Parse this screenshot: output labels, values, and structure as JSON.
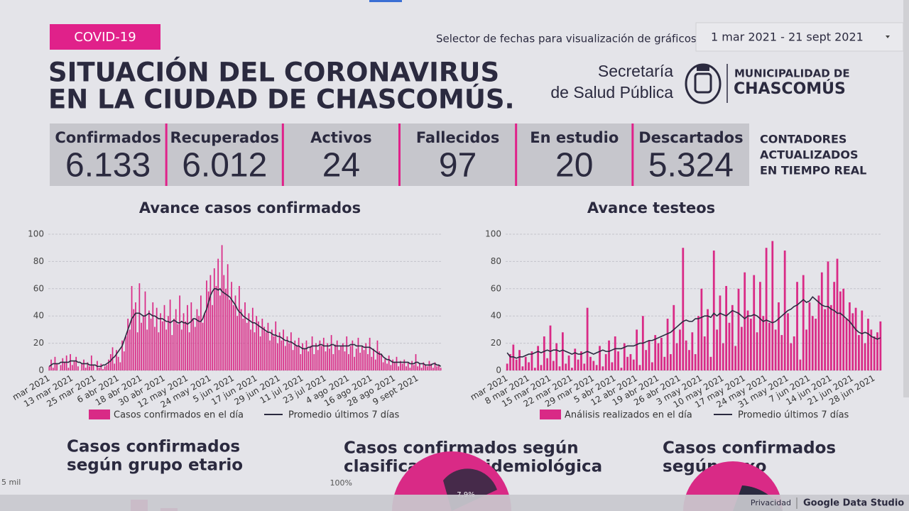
{
  "header": {
    "tag": "COVID-19",
    "title_lines": [
      "SITUACIÓN DEL CORONAVIRUS",
      "EN LA CIUDAD DE CHASCOMÚS."
    ],
    "date_selector_label": "Selector de fechas para visualización de gráficos:",
    "date_range": "1 mar 2021 - 21 sept 2021",
    "logo": {
      "secretaria": [
        "Secretaría",
        "de Salud Pública"
      ],
      "municipalidad": [
        "MUNICIPALIDAD DE",
        "CHASCOMÚS"
      ]
    }
  },
  "counters": [
    {
      "label": "Confirmados",
      "value": "6.133"
    },
    {
      "label": "Recuperados",
      "value": "6.012"
    },
    {
      "label": "Activos",
      "value": "24"
    },
    {
      "label": "Fallecidos",
      "value": "97"
    },
    {
      "label": "En estudio",
      "value": "20"
    },
    {
      "label": "Descartados",
      "value": "5.324"
    }
  ],
  "counters_note": [
    "CONTADORES",
    "ACTUALIZADOS",
    "EN TIEMPO REAL"
  ],
  "chart_data": [
    {
      "type": "bar",
      "title": "Avance casos confirmados",
      "categories": [
        "mar 2021",
        null,
        null,
        null,
        null,
        null,
        null,
        null,
        null,
        null,
        null,
        null,
        "13 mar 2021",
        null,
        null,
        null,
        null,
        null,
        null,
        null,
        null,
        null,
        null,
        null,
        "25 mar 2021",
        null,
        null,
        null,
        null,
        null,
        null,
        null,
        null,
        null,
        null,
        null,
        "6 abr 2021",
        null,
        null,
        null,
        null,
        null,
        null,
        null,
        null,
        null,
        null,
        null,
        "18 abr 2021",
        null,
        null,
        null,
        null,
        null,
        null,
        null,
        null,
        null,
        null,
        null,
        "30 abr 2021",
        null,
        null,
        null,
        null,
        null,
        null,
        null,
        null,
        null,
        null,
        null,
        "12 may 2021",
        null,
        null,
        null,
        null,
        null,
        null,
        null,
        null,
        null,
        null,
        null,
        "24 may 2021",
        null,
        null,
        null,
        null,
        null,
        null,
        null,
        null,
        null,
        null,
        null,
        "5 jun 2021",
        null,
        null,
        null,
        null,
        null,
        null,
        null,
        null,
        null,
        null,
        null,
        "17 jun 2021",
        null,
        null,
        null,
        null,
        null,
        null,
        null,
        null,
        null,
        null,
        null,
        "29 jun 2021",
        null,
        null,
        null,
        null,
        null,
        null,
        null,
        null,
        null,
        null,
        null,
        "11 jul 2021",
        null,
        null,
        null,
        null,
        null,
        null,
        null,
        null,
        null,
        null,
        null,
        "23 jul 2021",
        null,
        null,
        null,
        null,
        null,
        null,
        null,
        null,
        null,
        null,
        null,
        "4 ago 2021",
        null,
        null,
        null,
        null,
        null,
        null,
        null,
        null,
        null,
        null,
        null,
        "16 ago 2021",
        null,
        null,
        null,
        null,
        null,
        null,
        null,
        null,
        null,
        null,
        null,
        "28 ago 2021",
        null,
        null,
        null,
        null,
        null,
        null,
        null,
        null,
        null,
        null,
        null,
        "9 sept 2021",
        null,
        null,
        null,
        null,
        null,
        null,
        null,
        null,
        null,
        null,
        null,
        null
      ],
      "series": [
        {
          "name": "Casos confirmados en el día",
          "color": "#d92a86",
          "values": [
            3,
            8,
            2,
            10,
            5,
            0,
            4,
            9,
            6,
            11,
            2,
            12,
            4,
            7,
            10,
            3,
            0,
            5,
            8,
            2,
            6,
            3,
            11,
            4,
            0,
            7,
            2,
            5,
            1,
            3,
            4,
            8,
            12,
            17,
            5,
            15,
            10,
            6,
            22,
            14,
            25,
            38,
            30,
            62,
            45,
            50,
            28,
            64,
            35,
            40,
            58,
            30,
            44,
            38,
            50,
            32,
            46,
            28,
            42,
            36,
            48,
            30,
            40,
            52,
            26,
            38,
            45,
            34,
            55,
            30,
            42,
            36,
            48,
            28,
            50,
            38,
            32,
            45,
            40,
            55,
            35,
            42,
            66,
            58,
            70,
            48,
            75,
            62,
            82,
            55,
            92,
            70,
            60,
            78,
            52,
            65,
            48,
            55,
            40,
            62,
            45,
            38,
            50,
            35,
            42,
            30,
            46,
            28,
            40,
            36,
            25,
            38,
            32,
            28,
            35,
            22,
            30,
            25,
            36,
            20,
            28,
            22,
            30,
            18,
            25,
            20,
            28,
            15,
            22,
            18,
            24,
            12,
            20,
            16,
            22,
            14,
            18,
            25,
            12,
            20,
            15,
            22,
            18,
            24,
            14,
            20,
            16,
            26,
            12,
            19,
            22,
            15,
            18,
            20,
            14,
            25,
            12,
            18,
            22,
            10,
            16,
            24,
            13,
            18,
            15,
            20,
            12,
            24,
            10,
            16,
            8,
            22,
            14,
            12,
            6,
            9,
            5,
            11,
            4,
            8,
            6,
            10,
            3,
            7,
            5,
            8,
            3,
            6,
            2,
            7,
            4,
            12,
            3,
            5,
            2,
            6,
            4,
            3,
            7,
            5,
            2,
            6,
            3,
            4,
            2
          ]
        },
        {
          "name": "Promedio últimos 7 días",
          "color": "#2b2a3f",
          "type": "line",
          "values": [
            3,
            4,
            5,
            5,
            5,
            5,
            6,
            6,
            6,
            6,
            6,
            7,
            7,
            7,
            7,
            6,
            6,
            5,
            5,
            5,
            5,
            4,
            4,
            4,
            4,
            3,
            3,
            3,
            4,
            4,
            5,
            6,
            7,
            9,
            10,
            12,
            14,
            16,
            18,
            22,
            26,
            30,
            34,
            38,
            40,
            42,
            42,
            42,
            41,
            40,
            40,
            41,
            42,
            41,
            40,
            40,
            39,
            38,
            38,
            38,
            37,
            36,
            36,
            35,
            36,
            37,
            36,
            35,
            35,
            36,
            35,
            35,
            34,
            35,
            36,
            38,
            38,
            37,
            36,
            36,
            38,
            42,
            45,
            50,
            55,
            58,
            60,
            60,
            59,
            60,
            58,
            57,
            56,
            55,
            54,
            52,
            50,
            48,
            45,
            43,
            42,
            40,
            39,
            38,
            37,
            36,
            35,
            35,
            34,
            33,
            32,
            31,
            30,
            29,
            28,
            28,
            27,
            26,
            26,
            25,
            25,
            24,
            23,
            22,
            22,
            21,
            21,
            20,
            19,
            18,
            18,
            17,
            16,
            16,
            16,
            17,
            17,
            18,
            18,
            18,
            18,
            19,
            19,
            18,
            18,
            18,
            18,
            19,
            19,
            18,
            18,
            18,
            18,
            18,
            18,
            18,
            18,
            19,
            19,
            19,
            18,
            18,
            18,
            18,
            17,
            17,
            17,
            17,
            16,
            15,
            14,
            13,
            12,
            12,
            10,
            9,
            8,
            8,
            7,
            6,
            6,
            6,
            6,
            6,
            6,
            6,
            6,
            6,
            5,
            5,
            5,
            6,
            6,
            5,
            5,
            5,
            4,
            4,
            4,
            4,
            5,
            5,
            4,
            4,
            3
          ]
        }
      ],
      "ylim": [
        0,
        100
      ],
      "yticks": [
        0,
        20,
        40,
        60,
        80,
        100
      ],
      "grid": true
    },
    {
      "type": "bar",
      "title": "Avance testeos",
      "categories": [
        "mar 2021",
        null,
        null,
        null,
        null,
        null,
        null,
        "8 mar 2021",
        null,
        null,
        null,
        null,
        null,
        null,
        "15 mar 2021",
        null,
        null,
        null,
        null,
        null,
        null,
        "22 mar 2021",
        null,
        null,
        null,
        null,
        null,
        null,
        "29 mar 2021",
        null,
        null,
        null,
        null,
        null,
        null,
        "5 abr 2021",
        null,
        null,
        null,
        null,
        null,
        null,
        "12 abr 2021",
        null,
        null,
        null,
        null,
        null,
        null,
        "19 abr 2021",
        null,
        null,
        null,
        null,
        null,
        null,
        "26 abr 2021",
        null,
        null,
        null,
        null,
        null,
        null,
        "3 may 2021",
        null,
        null,
        null,
        null,
        null,
        null,
        "10 may 2021",
        null,
        null,
        null,
        null,
        null,
        null,
        "17 may 2021",
        null,
        null,
        null,
        null,
        null,
        null,
        "24 may 2021",
        null,
        null,
        null,
        null,
        null,
        null,
        "31 may 2021",
        null,
        null,
        null,
        null,
        null,
        null,
        "7 jun 2021",
        null,
        null,
        null,
        null,
        null,
        null,
        "14 jun 2021",
        null,
        null,
        null,
        null,
        null,
        null,
        "21 jun 2021",
        null,
        null,
        null,
        null,
        null,
        null,
        "28 jun 2021",
        null,
        null
      ],
      "series": [
        {
          "name": "Análisis realizados en el día",
          "color": "#d92a86",
          "values": [
            5,
            12,
            19,
            8,
            15,
            3,
            10,
            6,
            14,
            2,
            18,
            4,
            25,
            9,
            33,
            7,
            20,
            3,
            28,
            5,
            11,
            2,
            16,
            8,
            14,
            5,
            46,
            10,
            7,
            4,
            18,
            3,
            12,
            22,
            6,
            25,
            14,
            2,
            20,
            10,
            12,
            8,
            30,
            4,
            40,
            15,
            22,
            6,
            26,
            20,
            24,
            10,
            38,
            12,
            48,
            20,
            30,
            90,
            22,
            15,
            28,
            12,
            40,
            60,
            25,
            45,
            10,
            88,
            30,
            55,
            20,
            62,
            35,
            48,
            18,
            60,
            32,
            72,
            44,
            38,
            70,
            28,
            65,
            40,
            90,
            35,
            95,
            30,
            50,
            26,
            88,
            42,
            20,
            25,
            65,
            8,
            70,
            30,
            50,
            40,
            38,
            55,
            72,
            45,
            80,
            48,
            65,
            82,
            58,
            60,
            38,
            50,
            42,
            46,
            26,
            44,
            20,
            38,
            30,
            25,
            28,
            36
          ]
        },
        {
          "name": "Promedio últimos 7 días",
          "color": "#2b2a3f",
          "type": "line",
          "values": [
            13,
            10,
            10,
            9,
            10,
            10,
            11,
            12,
            12,
            13,
            14,
            13,
            14,
            15,
            14,
            15,
            15,
            14,
            15,
            14,
            13,
            12,
            13,
            12,
            12,
            13,
            14,
            13,
            12,
            13,
            14,
            15,
            14,
            14,
            15,
            16,
            16,
            16,
            17,
            18,
            18,
            18,
            19,
            20,
            20,
            21,
            22,
            22,
            23,
            24,
            25,
            26,
            27,
            28,
            30,
            32,
            34,
            36,
            37,
            36,
            36,
            38,
            38,
            39,
            40,
            40,
            39,
            42,
            40,
            42,
            41,
            40,
            42,
            44,
            43,
            42,
            40,
            38,
            40,
            40,
            41,
            40,
            38,
            36,
            37,
            36,
            35,
            36,
            38,
            40,
            42,
            44,
            45,
            47,
            48,
            50,
            52,
            50,
            51,
            54,
            52,
            50,
            48,
            47,
            47,
            45,
            44,
            42,
            42,
            40,
            38,
            36,
            33,
            30,
            28,
            27,
            28,
            27,
            25,
            24,
            23,
            24
          ]
        }
      ],
      "ylim": [
        0,
        100
      ],
      "yticks": [
        0,
        20,
        40,
        60,
        80,
        100
      ],
      "grid": true
    }
  ],
  "bottom": {
    "titles": [
      [
        "Casos confirmados",
        "según grupo etario"
      ],
      [
        "Casos confirmados según",
        "clasificación epidemiológica"
      ],
      [
        "Casos confirmados",
        "según sexo"
      ]
    ],
    "age_axis_label": "5 mil",
    "epi_axis_label": "100%",
    "pie_label": "7,9%"
  },
  "footer": {
    "privacy": "Privacidad",
    "brand": "Google Data Studio"
  }
}
